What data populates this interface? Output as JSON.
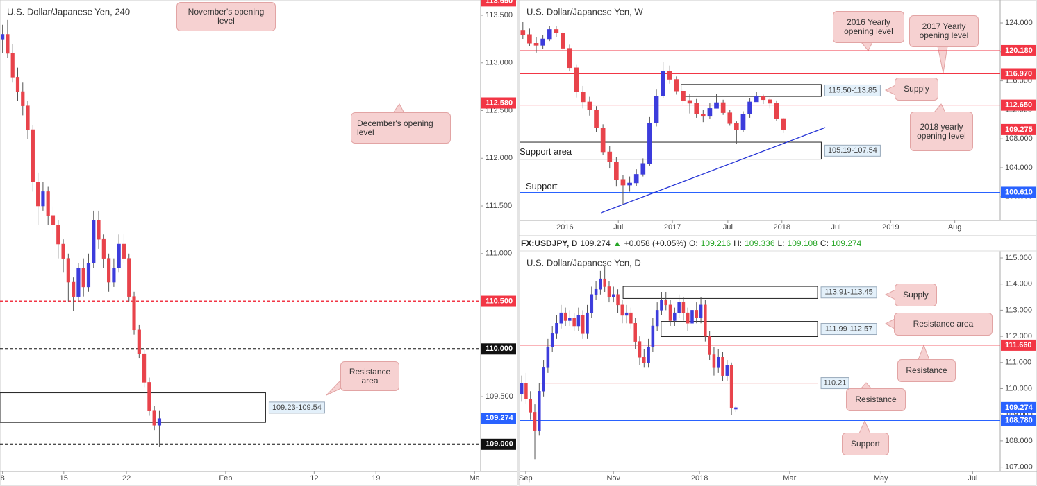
{
  "chart_data": [
    {
      "type": "candlestick",
      "title": "U.S. Dollar/Japanese Yen, 240",
      "up_color": "#3c3cdc",
      "down_color": "#e8434b",
      "xlim": [
        0,
        95
      ],
      "xticks": [
        {
          "value": 0.5,
          "label": "8"
        },
        {
          "value": 12.6,
          "label": "15"
        },
        {
          "value": 25,
          "label": "22"
        },
        {
          "value": 44.6,
          "label": "Feb"
        },
        {
          "value": 62.1,
          "label": "12"
        },
        {
          "value": 74.3,
          "label": "19"
        },
        {
          "value": 93.8,
          "label": "Ma"
        }
      ],
      "ylim": [
        108.715,
        113.66
      ],
      "yticks": [
        {
          "value": 113.5,
          "label": "113.500"
        },
        {
          "value": 113,
          "label": "113.000"
        },
        {
          "value": 112.5,
          "label": "112.500"
        },
        {
          "value": 112,
          "label": "112.000"
        },
        {
          "value": 111.5,
          "label": "111.500"
        },
        {
          "value": 111,
          "label": "111.000"
        },
        {
          "value": 110.5,
          "label": "110.500"
        },
        {
          "value": 110,
          "label": "110.000"
        },
        {
          "value": 109.5,
          "label": "109.500"
        },
        {
          "value": 109,
          "label": "109.000"
        }
      ],
      "x": [
        0.5,
        1.5,
        2.5,
        3.5,
        4.5,
        5.5,
        6.5,
        7.5,
        8.5,
        9.5,
        10.5,
        11.5,
        12.5,
        13.5,
        14.5,
        15.5,
        16.5,
        17.5,
        18.5,
        19.5,
        20.5,
        21.5,
        22.5,
        23.5,
        24.5,
        25.5,
        26.5,
        27.5,
        28.5,
        29.5,
        30.5,
        31.5
      ],
      "open": [
        113.25,
        113.3,
        113.1,
        112.85,
        112.7,
        112.55,
        112.3,
        111.75,
        111.5,
        111.65,
        111.4,
        111.3,
        111.1,
        110.95,
        110.7,
        110.55,
        110.85,
        110.65,
        110.9,
        111.35,
        111.15,
        110.95,
        110.7,
        110.85,
        111.1,
        110.95,
        110.55,
        110.2,
        109.95,
        109.65,
        109.35,
        109.2
      ],
      "high": [
        113.4,
        113.45,
        113.2,
        112.95,
        112.8,
        112.6,
        112.35,
        111.85,
        111.75,
        111.7,
        111.5,
        111.35,
        111.15,
        111.0,
        110.75,
        110.9,
        110.95,
        111.0,
        111.45,
        111.45,
        111.2,
        111.0,
        110.95,
        111.2,
        111.2,
        111.0,
        110.6,
        110.25,
        110.0,
        109.7,
        109.4,
        109.35
      ],
      "low": [
        113.1,
        113.05,
        112.8,
        112.6,
        112.45,
        112.2,
        111.65,
        111.3,
        111.45,
        111.3,
        111.2,
        110.95,
        110.8,
        110.5,
        110.4,
        110.5,
        110.55,
        110.6,
        110.85,
        111.05,
        110.85,
        110.6,
        110.65,
        110.8,
        110.9,
        110.5,
        110.15,
        109.9,
        109.6,
        109.3,
        109.15,
        108.97
      ],
      "close": [
        113.3,
        113.1,
        112.85,
        112.7,
        112.55,
        112.3,
        111.75,
        111.5,
        111.65,
        111.4,
        111.3,
        111.1,
        110.95,
        110.7,
        110.55,
        110.85,
        110.65,
        110.9,
        111.35,
        111.15,
        110.95,
        110.7,
        110.85,
        111.1,
        110.95,
        110.55,
        110.2,
        109.95,
        109.65,
        109.35,
        109.2,
        109.27
      ],
      "levels": [
        {
          "value": 113.65,
          "label": "113.650",
          "color": "#f23645",
          "line": false,
          "dash": false
        },
        {
          "value": 112.58,
          "label": "112.580",
          "color": "#f23645",
          "line": true,
          "dash": false
        },
        {
          "value": 110.5,
          "label": "110.500",
          "color": "#f23645",
          "line": true,
          "dash": true
        },
        {
          "value": 110,
          "label": "110.000",
          "color": "#111111",
          "line": true,
          "dash": true
        },
        {
          "value": 109,
          "label": "109.000",
          "color": "#111111",
          "line": true,
          "dash": true
        },
        {
          "value": 109.274,
          "label": "109.274",
          "color": "#2962ff",
          "line": false,
          "dash": false
        }
      ],
      "zones": [
        {
          "top": 109.54,
          "bottom": 109.23,
          "x": [
            0,
            52.5
          ],
          "label": "109.23-109.54"
        }
      ],
      "annotations": [
        "November's opening level",
        "December's opening level",
        "Resistance area"
      ]
    },
    {
      "type": "candlestick",
      "title": "U.S. Dollar/Japanese Yen, W",
      "up_color": "#3c3cdc",
      "down_color": "#e8434b",
      "xlim": [
        0,
        72
      ],
      "xticks": [
        {
          "value": 6.8,
          "label": "2016"
        },
        {
          "value": 14.8,
          "label": "Jul"
        },
        {
          "value": 22.9,
          "label": "2017"
        },
        {
          "value": 31.2,
          "label": "Jul"
        },
        {
          "value": 39.3,
          "label": "2018"
        },
        {
          "value": 47.4,
          "label": "Jul"
        },
        {
          "value": 55.6,
          "label": "2019"
        },
        {
          "value": 65.2,
          "label": "Aug"
        }
      ],
      "ylim": [
        96.73,
        127.16
      ],
      "yticks": [
        {
          "value": 124,
          "label": "124.000"
        },
        {
          "value": 120,
          "label": "120.000"
        },
        {
          "value": 116,
          "label": "116.000"
        },
        {
          "value": 112,
          "label": "112.000"
        },
        {
          "value": 108,
          "label": "108.000"
        },
        {
          "value": 104,
          "label": "104.000"
        },
        {
          "value": 100,
          "label": "100.000"
        }
      ],
      "x": [
        0.5,
        1.5,
        2.5,
        3.5,
        4.5,
        5.5,
        6.5,
        7.5,
        8.5,
        9.5,
        10.5,
        11.5,
        12.5,
        13.5,
        14.5,
        15.5,
        16.5,
        17.5,
        18.5,
        19.5,
        20.5,
        21.5,
        22.5,
        23.5,
        24.5,
        25.5,
        26.5,
        27.5,
        28.5,
        29.5,
        30.5,
        31.5,
        32.5,
        33.5,
        34.5,
        35.5,
        36.5,
        37.5,
        38.5,
        39.5
      ],
      "open": [
        123.0,
        122.4,
        121.2,
        120.9,
        121.8,
        123.1,
        122.6,
        120.5,
        117.8,
        114.5,
        113.1,
        112.0,
        109.5,
        106.2,
        104.8,
        102.4,
        101.6,
        101.9,
        103.1,
        104.6,
        110.2,
        113.9,
        117.3,
        116.2,
        114.6,
        113.3,
        112.9,
        111.4,
        111.1,
        112.2,
        113.0,
        111.6,
        110.1,
        109.2,
        111.4,
        113.1,
        113.9,
        113.4,
        112.9,
        110.8
      ],
      "high": [
        124.1,
        123.2,
        122.0,
        122.3,
        123.6,
        123.6,
        122.9,
        121.0,
        118.2,
        115.3,
        113.8,
        112.5,
        110.0,
        107.0,
        105.5,
        103.0,
        102.8,
        103.8,
        105.3,
        111.0,
        114.8,
        118.6,
        118.1,
        116.6,
        114.9,
        114.2,
        113.5,
        112.0,
        112.9,
        114.2,
        113.4,
        112.0,
        110.4,
        111.8,
        113.6,
        114.5,
        114.1,
        113.7,
        113.3,
        110.9
      ],
      "low": [
        121.8,
        120.8,
        119.9,
        120.4,
        121.5,
        122.0,
        120.1,
        117.3,
        113.7,
        112.2,
        111.2,
        108.9,
        105.8,
        103.9,
        101.4,
        99.0,
        100.7,
        101.5,
        102.8,
        104.3,
        109.7,
        113.6,
        115.6,
        114.1,
        112.7,
        111.5,
        110.9,
        110.3,
        110.8,
        112.4,
        111.3,
        109.8,
        107.3,
        108.9,
        110.9,
        113.3,
        112.8,
        112.2,
        110.5,
        108.8
      ],
      "close": [
        122.4,
        121.2,
        120.9,
        121.8,
        123.1,
        122.6,
        120.5,
        117.8,
        114.5,
        113.1,
        112.0,
        109.5,
        106.2,
        104.8,
        102.4,
        101.6,
        101.9,
        103.1,
        104.6,
        110.2,
        113.9,
        117.3,
        116.2,
        114.6,
        113.3,
        112.9,
        111.4,
        111.1,
        112.2,
        113.0,
        111.6,
        110.1,
        109.2,
        111.4,
        113.1,
        113.9,
        113.4,
        112.9,
        110.8,
        109.27
      ],
      "levels": [
        {
          "value": 120.18,
          "label": "120.180",
          "color": "#f23645",
          "line": true,
          "dash": false
        },
        {
          "value": 116.97,
          "label": "116.970",
          "color": "#f23645",
          "line": true,
          "dash": false
        },
        {
          "value": 112.65,
          "label": "112.650",
          "color": "#f23645",
          "line": true,
          "dash": false
        },
        {
          "value": 109.275,
          "label": "109.275",
          "color": "#f23645",
          "line": false,
          "dash": false
        },
        {
          "value": 100.61,
          "label": "100.610",
          "color": "#2962ff",
          "line": true,
          "dash": false
        }
      ],
      "zones": [
        {
          "top": 115.5,
          "bottom": 113.85,
          "x": [
            24.2,
            45.2
          ],
          "label": "115.50-113.85"
        },
        {
          "top": 107.54,
          "bottom": 105.19,
          "x": [
            0,
            45.2
          ],
          "label": "105.19-107.54"
        }
      ],
      "trendline": {
        "x": [
          12.2,
          45.8
        ],
        "y": [
          97.78,
          109.55
        ],
        "color": "#2433d6"
      },
      "texts": [
        "Support area",
        "Support"
      ],
      "annotations": [
        "2016 Yearly opening level",
        "2017 Yearly opening level",
        "Supply",
        "2018 yearly opening level"
      ]
    },
    {
      "type": "candlestick",
      "title": "U.S. Dollar/Japanese Yen, D",
      "header": {
        "symbol": "FX:USDJPY, D",
        "last": "109.274",
        "arrow": "▲",
        "change": "+0.058 (+0.05%)",
        "ohlc": [
          {
            "label": "O:",
            "value": "109.216"
          },
          {
            "label": "H:",
            "value": "109.336"
          },
          {
            "label": "L:",
            "value": "109.108"
          },
          {
            "label": "C:",
            "value": "109.274"
          }
        ]
      },
      "up_color": "#3c3cdc",
      "down_color": "#e8434b",
      "xlim": [
        0,
        110
      ],
      "xticks": [
        {
          "value": 1.4,
          "label": "Sep"
        },
        {
          "value": 21.5,
          "label": "Nov"
        },
        {
          "value": 41.2,
          "label": "2018"
        },
        {
          "value": 61.8,
          "label": "Mar"
        },
        {
          "value": 82.7,
          "label": "May"
        },
        {
          "value": 103.7,
          "label": "Jul"
        }
      ],
      "ylim": [
        106.83,
        115.265
      ],
      "yticks": [
        {
          "value": 115,
          "label": "115.000"
        },
        {
          "value": 114,
          "label": "114.000"
        },
        {
          "value": 113,
          "label": "113.000"
        },
        {
          "value": 112,
          "label": "112.000"
        },
        {
          "value": 111,
          "label": "111.000"
        },
        {
          "value": 110,
          "label": "110.000"
        },
        {
          "value": 109,
          "label": "109.000"
        },
        {
          "value": 108,
          "label": "108.000"
        },
        {
          "value": 107,
          "label": "107.000"
        }
      ],
      "x": [
        0.5,
        1.5,
        2.5,
        3.5,
        4.5,
        5.5,
        6.5,
        7.5,
        8.5,
        9.5,
        10.5,
        11.5,
        12.5,
        13.5,
        14.5,
        15.5,
        16.5,
        17.5,
        18.5,
        19.5,
        20.5,
        21.5,
        22.5,
        23.5,
        24.5,
        25.5,
        26.5,
        27.5,
        28.5,
        29.5,
        30.5,
        31.5,
        32.5,
        33.5,
        34.5,
        35.5,
        36.5,
        37.5,
        38.5,
        39.5,
        40.5,
        41.5,
        42.5,
        43.5,
        44.5,
        45.5,
        46.5,
        47.5,
        48.5,
        49.5
      ],
      "open": [
        109.8,
        110.2,
        109.6,
        109.1,
        108.4,
        109.9,
        110.8,
        111.6,
        112.1,
        112.5,
        112.9,
        112.6,
        112.7,
        112.4,
        112.8,
        112.1,
        112.9,
        113.6,
        113.8,
        114.2,
        113.9,
        113.5,
        113.6,
        113.2,
        112.8,
        112.9,
        112.5,
        111.8,
        111.2,
        111.0,
        111.6,
        112.4,
        113.0,
        113.4,
        113.2,
        112.6,
        112.9,
        113.3,
        112.9,
        112.5,
        113.0,
        112.7,
        113.2,
        112.0,
        111.3,
        110.8,
        111.2,
        110.5,
        110.9,
        109.216
      ],
      "high": [
        110.5,
        110.6,
        109.9,
        109.4,
        110.2,
        111.1,
        111.9,
        112.4,
        112.8,
        113.2,
        113.1,
        113.0,
        112.9,
        113.1,
        113.0,
        113.2,
        113.9,
        114.1,
        114.5,
        114.7,
        114.1,
        113.9,
        113.8,
        113.4,
        113.2,
        113.1,
        112.7,
        112.0,
        111.5,
        111.9,
        112.7,
        113.3,
        113.7,
        113.7,
        113.4,
        113.1,
        113.6,
        113.5,
        113.1,
        113.3,
        113.3,
        113.5,
        113.4,
        112.2,
        111.6,
        111.5,
        111.4,
        111.1,
        111.0,
        109.336
      ],
      "low": [
        109.5,
        109.4,
        108.8,
        107.3,
        108.2,
        109.7,
        110.6,
        111.4,
        111.9,
        112.3,
        112.4,
        112.4,
        112.2,
        112.2,
        111.9,
        111.9,
        112.7,
        113.4,
        113.6,
        113.7,
        113.3,
        113.3,
        112.9,
        112.5,
        112.5,
        112.3,
        111.5,
        110.9,
        110.8,
        110.8,
        111.4,
        112.2,
        112.8,
        113.0,
        112.4,
        112.4,
        112.7,
        112.6,
        112.2,
        112.3,
        112.5,
        112.5,
        111.8,
        111.1,
        110.5,
        110.6,
        110.3,
        110.3,
        109.0,
        109.108
      ],
      "close": [
        110.2,
        109.6,
        109.1,
        108.4,
        109.9,
        110.8,
        111.6,
        112.1,
        112.5,
        112.9,
        112.6,
        112.7,
        112.4,
        112.8,
        112.1,
        112.9,
        113.6,
        113.8,
        114.2,
        113.9,
        113.5,
        113.6,
        113.2,
        112.8,
        112.9,
        112.5,
        111.8,
        111.2,
        111.0,
        111.6,
        112.4,
        113.0,
        113.4,
        113.2,
        112.6,
        112.9,
        113.3,
        112.9,
        112.5,
        113.0,
        112.7,
        113.2,
        112.0,
        111.3,
        110.8,
        111.2,
        110.5,
        110.9,
        109.25,
        109.274
      ],
      "levels": [
        {
          "value": 111.66,
          "label": "111.660",
          "color": "#f23645",
          "line": true,
          "dash": false
        },
        {
          "value": 109.274,
          "label": "109.274",
          "color": "#2962ff",
          "line": false,
          "dash": false
        },
        {
          "value": 108.78,
          "label": "108.780",
          "color": "#2962ff",
          "line": true,
          "dash": false
        }
      ],
      "zones": [
        {
          "top": 113.91,
          "bottom": 113.45,
          "x": [
            23.7,
            68.2
          ],
          "label": "113.91-113.45"
        },
        {
          "top": 112.57,
          "bottom": 111.99,
          "x": [
            32.4,
            68.2
          ],
          "label": "111.99-112.57"
        }
      ],
      "rays": [
        {
          "value": 110.21,
          "label": "110.21",
          "x": [
            4.8,
            68.2
          ],
          "color": "#e04b4b"
        }
      ],
      "annotations": [
        "Supply",
        "Resistance area",
        "Resistance",
        "Resistance",
        "Support"
      ]
    }
  ]
}
